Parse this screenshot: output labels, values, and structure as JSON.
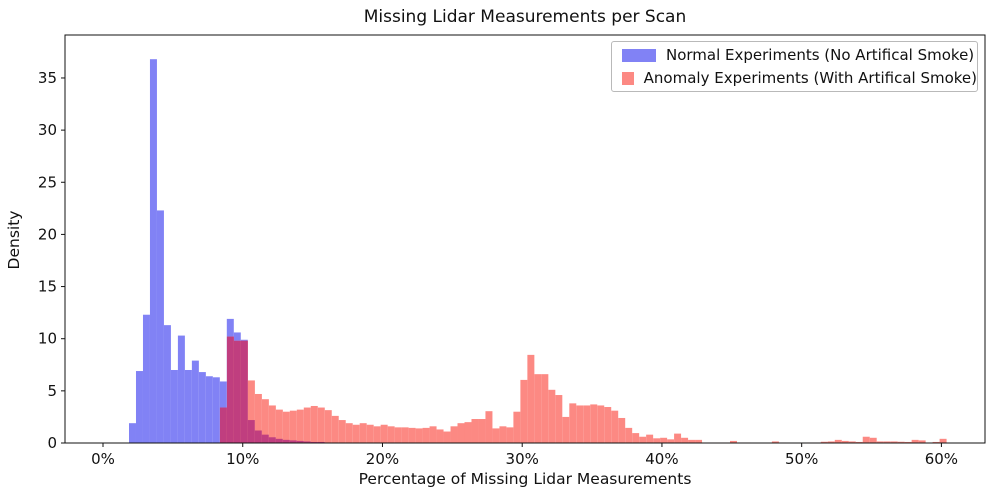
{
  "title": "Missing Lidar Measurements per Scan",
  "x_axis": {
    "label": "Percentage of Missing Lidar Measurements",
    "ticks": [
      0,
      10,
      20,
      30,
      40,
      50,
      60
    ],
    "tick_labels": [
      "0%",
      "10%",
      "20%",
      "30%",
      "40%",
      "50%",
      "60%"
    ],
    "min": -2.72,
    "max": 63.12
  },
  "y_axis": {
    "label": "Density",
    "ticks": [
      0,
      5,
      10,
      15,
      20,
      25,
      30,
      35
    ],
    "tick_labels": [
      "0",
      "5",
      "10",
      "15",
      "20",
      "25",
      "30",
      "35"
    ],
    "min": 0,
    "max": 39.12
  },
  "legend": {
    "items": [
      {
        "label": "Normal Experiments (No Artifical Smoke)",
        "color": "#8182f5"
      },
      {
        "label": "Anomaly Experiments (With Artifical Smoke)",
        "color": "#fc8983"
      }
    ]
  },
  "chart_data": {
    "type": "bar",
    "subtype": "overlapping-histograms",
    "title": "Missing Lidar Measurements per Scan",
    "xlabel": "Percentage of Missing Lidar Measurements",
    "ylabel": "Density",
    "xlim": [
      -2.72,
      63.12
    ],
    "ylim": [
      0,
      39.12
    ],
    "grid": false,
    "legend_position": "upper right",
    "overlap_color": "#c03e7f",
    "series": [
      {
        "name": "Normal Experiments (No Artifical Smoke)",
        "color": "#8182f5",
        "bin_start_pct": 1.86,
        "bin_width_pct": 0.5,
        "densities": [
          1.9,
          6.9,
          12.3,
          36.8,
          22.3,
          11.3,
          7.0,
          10.3,
          7.0,
          7.9,
          6.8,
          6.4,
          6.3,
          5.9,
          11.9,
          10.6,
          9.9,
          2.2,
          1.2,
          0.8,
          0.55,
          0.4,
          0.3,
          0.25,
          0.2,
          0.15,
          0.1,
          0.1
        ]
      },
      {
        "name": "Anomaly Experiments (With Artifical Smoke)",
        "color": "#fc8983",
        "bin_start_pct": 8.37,
        "bin_width_pct": 0.5,
        "densities": [
          3.4,
          10.2,
          9.8,
          9.8,
          6.0,
          4.7,
          4.2,
          3.6,
          3.2,
          3.0,
          3.1,
          3.2,
          3.4,
          3.55,
          3.4,
          3.15,
          2.6,
          2.2,
          1.9,
          1.75,
          1.9,
          1.75,
          1.6,
          1.75,
          1.6,
          1.5,
          1.5,
          1.45,
          1.4,
          1.45,
          1.6,
          1.3,
          1.1,
          1.6,
          1.9,
          2.0,
          2.3,
          2.3,
          3.05,
          1.4,
          1.6,
          1.5,
          3.0,
          6.05,
          8.45,
          6.6,
          6.6,
          5.1,
          4.6,
          2.5,
          3.8,
          3.6,
          3.6,
          3.7,
          3.6,
          3.45,
          3.1,
          2.4,
          1.45,
          0.95,
          0.6,
          0.8,
          0.45,
          0.5,
          0.35,
          0.9,
          0.5,
          0.3,
          0.3,
          0.05,
          0.05,
          0.05,
          0.05,
          0.2,
          0.05,
          0.05,
          0.03,
          0.03,
          0.03,
          0.15,
          0.05,
          0.03,
          0.03,
          0.03,
          0.05,
          0.05,
          0.12,
          0.15,
          0.3,
          0.2,
          0.15,
          0.1,
          0.6,
          0.5,
          0.15,
          0.15,
          0.15,
          0.12,
          0.1,
          0.3,
          0.25,
          0.05,
          0.1,
          0.4
        ]
      }
    ]
  }
}
